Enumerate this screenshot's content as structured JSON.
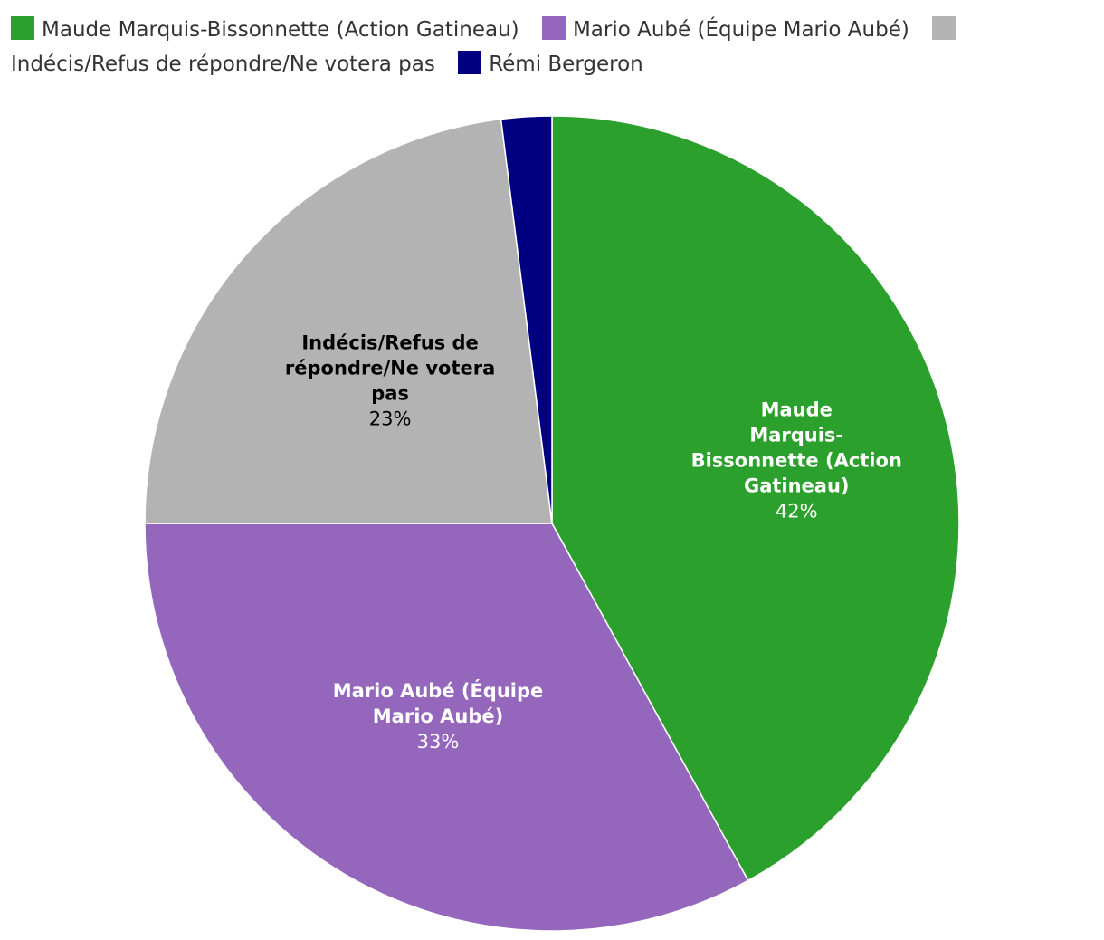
{
  "chart_data": {
    "type": "pie",
    "legend_position": "top",
    "slices": [
      {
        "name": "Maude Marquis-Bissonnette (Action Gatineau)",
        "value": 42,
        "value_label": "42%",
        "color": "#2ca02c",
        "label_color": "#ffffff",
        "label_lines": [
          "Maude",
          "Marquis-",
          "Bissonnette (Action",
          "Gatineau)"
        ]
      },
      {
        "name": "Mario Aubé (Équipe Mario Aubé)",
        "value": 33,
        "value_label": "33%",
        "color": "#9467bd",
        "label_color": "#ffffff",
        "label_lines": [
          "Mario Aubé (Équipe",
          "Mario Aubé)"
        ]
      },
      {
        "name": "Indécis/Refus de répondre/Ne votera pas",
        "value": 23,
        "value_label": "23%",
        "color": "#b3b3b3",
        "label_color": "#000000",
        "label_lines": [
          "Indécis/Refus de",
          "répondre/Ne votera",
          "pas"
        ]
      },
      {
        "name": "Rémi Bergeron",
        "value": 2,
        "value_label": "",
        "color": "#000080",
        "label_color": "#ffffff",
        "label_lines": []
      }
    ]
  }
}
